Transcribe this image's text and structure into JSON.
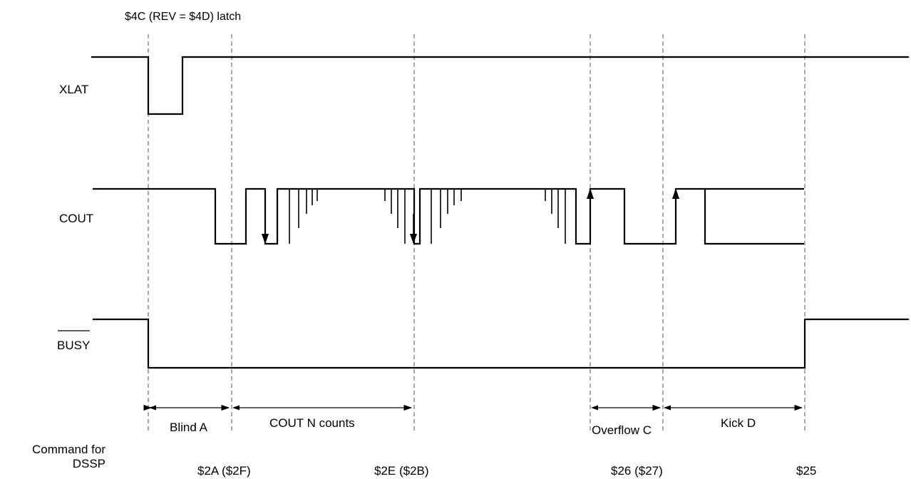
{
  "header": {
    "latch_label": "$4C (REV = $4D) latch"
  },
  "signals": {
    "xlat": "XLAT",
    "cout": "COUT",
    "busy": "BUSY"
  },
  "intervals": {
    "blind": "Blind A",
    "counts": "COUT N counts",
    "overflow": "Overflow C",
    "kick": "Kick D"
  },
  "commands": {
    "title_line1": "Command for",
    "title_line2": "DSSP",
    "cmd1": "$2A ($2F)",
    "cmd2": "$2E ($2B)",
    "cmd3": "$26 ($27)",
    "cmd4": "$25"
  }
}
